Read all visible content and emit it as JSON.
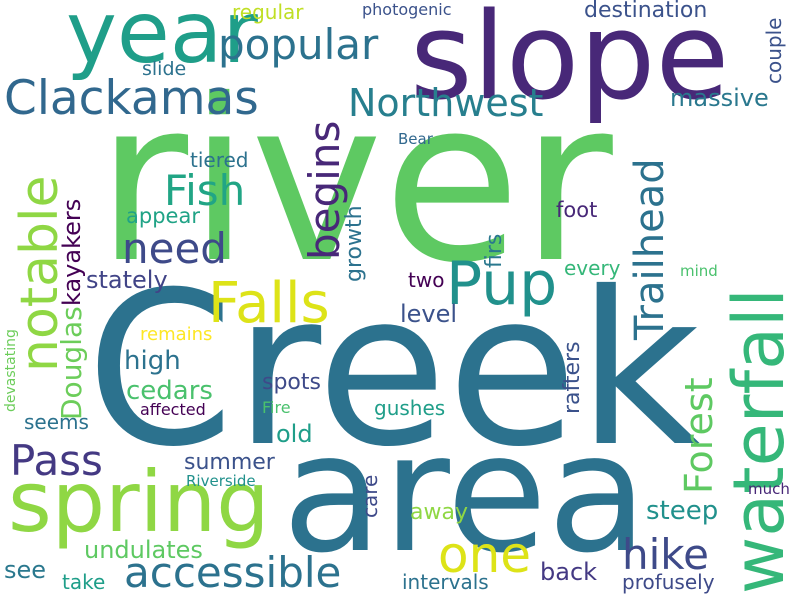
{
  "words": [
    {
      "id": "river",
      "text": "river",
      "color": "#5ec962"
    },
    {
      "id": "creek",
      "text": "Creek",
      "color": "#2c728e"
    },
    {
      "id": "area",
      "text": "area",
      "color": "#2c728e"
    },
    {
      "id": "slope",
      "text": "slope",
      "color": "#482878"
    },
    {
      "id": "year",
      "text": "year",
      "color": "#1f9e89"
    },
    {
      "id": "spring",
      "text": "spring",
      "color": "#8fd744"
    },
    {
      "id": "waterfall",
      "text": "waterfall",
      "color": "#35b779"
    },
    {
      "id": "clackamas",
      "text": "Clackamas",
      "color": "#31688e"
    },
    {
      "id": "popular",
      "text": "popular",
      "color": "#2c728e"
    },
    {
      "id": "northwest",
      "text": "Northwest",
      "color": "#277f8e"
    },
    {
      "id": "notable",
      "text": "notable",
      "color": "#8fd744"
    },
    {
      "id": "falls",
      "text": "Falls",
      "color": "#dde318"
    },
    {
      "id": "pup",
      "text": "Pup",
      "color": "#21918c"
    },
    {
      "id": "fish",
      "text": "Fish",
      "color": "#21a585"
    },
    {
      "id": "need",
      "text": "need",
      "color": "#3e4a89"
    },
    {
      "id": "begins",
      "text": "begins",
      "color": "#482878"
    },
    {
      "id": "trailhead",
      "text": "Trailhead",
      "color": "#2c728e"
    },
    {
      "id": "one",
      "text": "one",
      "color": "#dde318"
    },
    {
      "id": "accessible",
      "text": "accessible",
      "color": "#2c728e"
    },
    {
      "id": "hike",
      "text": "hike",
      "color": "#3e4a89"
    },
    {
      "id": "pass",
      "text": "Pass",
      "color": "#443983"
    },
    {
      "id": "forest",
      "text": "Forest",
      "color": "#5ec962"
    },
    {
      "id": "douglas",
      "text": "Douglas",
      "color": "#6ccd5a"
    },
    {
      "id": "kayakers",
      "text": "kayakers",
      "color": "#440154"
    },
    {
      "id": "massive",
      "text": "massive",
      "color": "#2a788e"
    },
    {
      "id": "destination",
      "text": "destination",
      "color": "#3b528b"
    },
    {
      "id": "regular",
      "text": "regular",
      "color": "#c0df25"
    },
    {
      "id": "photogenic",
      "text": "photogenic",
      "color": "#3b528b"
    },
    {
      "id": "couple",
      "text": "couple",
      "color": "#3b528b"
    },
    {
      "id": "slide",
      "text": "slide",
      "color": "#2c728e"
    },
    {
      "id": "bear",
      "text": "Bear",
      "color": "#31688e"
    },
    {
      "id": "tiered",
      "text": "tiered",
      "color": "#2c728e"
    },
    {
      "id": "appear",
      "text": "appear",
      "color": "#20a386"
    },
    {
      "id": "foot",
      "text": "foot",
      "color": "#482878"
    },
    {
      "id": "growth",
      "text": "growth",
      "color": "#2c728e"
    },
    {
      "id": "firs",
      "text": "firs",
      "color": "#2a788e"
    },
    {
      "id": "stately",
      "text": "stately",
      "color": "#414487"
    },
    {
      "id": "two",
      "text": "two",
      "color": "#440154"
    },
    {
      "id": "every",
      "text": "every",
      "color": "#35b779"
    },
    {
      "id": "mind",
      "text": "mind",
      "color": "#4ac16d"
    },
    {
      "id": "level",
      "text": "level",
      "color": "#3b528b"
    },
    {
      "id": "high",
      "text": "high",
      "color": "#2c728e"
    },
    {
      "id": "remains",
      "text": "remains",
      "color": "#fde725"
    },
    {
      "id": "rafters",
      "text": "rafters",
      "color": "#3b528b"
    },
    {
      "id": "cedars",
      "text": "cedars",
      "color": "#4ac16d"
    },
    {
      "id": "spots",
      "text": "spots",
      "color": "#3e4a89"
    },
    {
      "id": "devastating",
      "text": "devastating",
      "color": "#6ccd5a"
    },
    {
      "id": "affected",
      "text": "affected",
      "color": "#440154"
    },
    {
      "id": "fire",
      "text": "Fire",
      "color": "#4ac16d"
    },
    {
      "id": "gushes",
      "text": "gushes",
      "color": "#1f9e89"
    },
    {
      "id": "seems",
      "text": "seems",
      "color": "#2c728e"
    },
    {
      "id": "old",
      "text": "old",
      "color": "#1f9e89"
    },
    {
      "id": "summer",
      "text": "summer",
      "color": "#3b528b"
    },
    {
      "id": "riverside",
      "text": "Riverside",
      "color": "#21918c"
    },
    {
      "id": "care",
      "text": "care",
      "color": "#3e4a89"
    },
    {
      "id": "much",
      "text": "much",
      "color": "#482878"
    },
    {
      "id": "steep",
      "text": "steep",
      "color": "#21918c"
    },
    {
      "id": "away",
      "text": "away",
      "color": "#8fd744"
    },
    {
      "id": "undulates",
      "text": "undulates",
      "color": "#5ec962"
    },
    {
      "id": "see",
      "text": "see",
      "color": "#2a788e"
    },
    {
      "id": "take",
      "text": "take",
      "color": "#1f9e89"
    },
    {
      "id": "intervals",
      "text": "intervals",
      "color": "#2c728e"
    },
    {
      "id": "back",
      "text": "back",
      "color": "#443983"
    },
    {
      "id": "profusely",
      "text": "profusely",
      "color": "#3e4a89"
    }
  ]
}
